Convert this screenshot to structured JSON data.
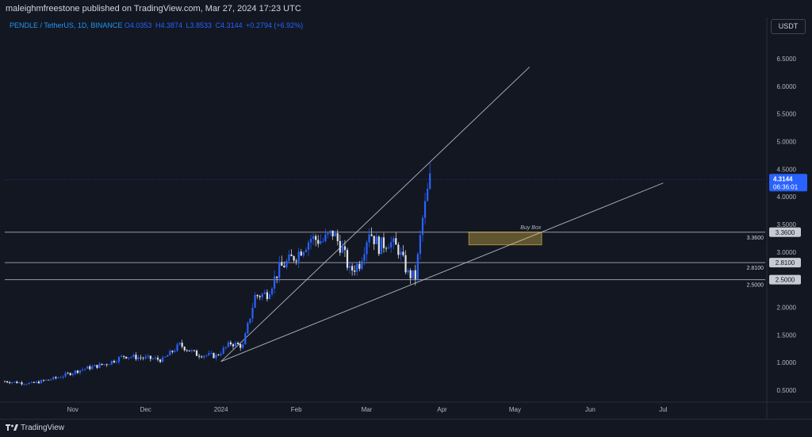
{
  "header": {
    "published_by": "maleighmfreestone published on TradingView.com, Mar 27, 2024 17:23 UTC"
  },
  "legend": {
    "symbol": "PENDLE / TetherUS, 1D, BINANCE",
    "open": "O4.0353",
    "high": "H4.3874",
    "low": "L3.8533",
    "close": "C4.3144",
    "change": "+0.2794 (+6.92%)"
  },
  "currency_button": "USDT",
  "footer": {
    "logo_text": "TradingView"
  },
  "colors": {
    "background": "#131722",
    "candle": "#2962ff",
    "candle_light": "#e0e3eb",
    "buy_box": "#f2c94c",
    "level_line": "#9598a1",
    "price_badge": "#2962ff"
  },
  "chart_data": {
    "type": "candlestick",
    "symbol": "PENDLE / TetherUS",
    "timeframe": "1D",
    "exchange": "BINANCE",
    "ylim": [
      0.35,
      7.05
    ],
    "y_ticks": [
      "6.5000",
      "6.0000",
      "5.5000",
      "5.0000",
      "4.5000",
      "4.0000",
      "3.5000",
      "3.0000",
      "2.5000",
      "2.0000",
      "1.5000",
      "1.0000",
      "0.5000"
    ],
    "x_ticks": [
      "Nov",
      "Dec",
      "2024",
      "Feb",
      "Mar",
      "Apr",
      "May",
      "Jun",
      "Jul"
    ],
    "x_tick_dates": [
      "2023-11-01",
      "2023-12-01",
      "2024-01-01",
      "2024-02-01",
      "2024-03-01",
      "2024-04-01",
      "2024-05-01",
      "2024-06-01",
      "2024-07-01"
    ],
    "xlim": [
      "2023-10-04",
      "2024-08-12"
    ],
    "current_price": "4.3144",
    "countdown": "06:36:01",
    "close_series": [
      {
        "date": "2023-10-04",
        "value": 0.66
      },
      {
        "date": "2023-10-15",
        "value": 0.62
      },
      {
        "date": "2023-10-25",
        "value": 0.72
      },
      {
        "date": "2023-11-05",
        "value": 0.88
      },
      {
        "date": "2023-11-15",
        "value": 0.98
      },
      {
        "date": "2023-11-22",
        "value": 1.12
      },
      {
        "date": "2023-12-01",
        "value": 1.08
      },
      {
        "date": "2023-12-08",
        "value": 1.05
      },
      {
        "date": "2023-12-15",
        "value": 1.32
      },
      {
        "date": "2023-12-22",
        "value": 1.15
      },
      {
        "date": "2023-12-30",
        "value": 1.12
      },
      {
        "date": "2024-01-05",
        "value": 1.35
      },
      {
        "date": "2024-01-10",
        "value": 1.3
      },
      {
        "date": "2024-01-15",
        "value": 2.2
      },
      {
        "date": "2024-01-20",
        "value": 2.25
      },
      {
        "date": "2024-01-25",
        "value": 2.7
      },
      {
        "date": "2024-02-01",
        "value": 2.95
      },
      {
        "date": "2024-02-07",
        "value": 3.25
      },
      {
        "date": "2024-02-12",
        "value": 3.2
      },
      {
        "date": "2024-02-16",
        "value": 3.35
      },
      {
        "date": "2024-02-20",
        "value": 3.05
      },
      {
        "date": "2024-02-23",
        "value": 2.65
      },
      {
        "date": "2024-02-27",
        "value": 2.8
      },
      {
        "date": "2024-03-02",
        "value": 3.4
      },
      {
        "date": "2024-03-06",
        "value": 3.1
      },
      {
        "date": "2024-03-10",
        "value": 3.2
      },
      {
        "date": "2024-03-14",
        "value": 3.05
      },
      {
        "date": "2024-03-18",
        "value": 2.6
      },
      {
        "date": "2024-03-21",
        "value": 2.55
      },
      {
        "date": "2024-03-24",
        "value": 3.6
      },
      {
        "date": "2024-03-27",
        "value": 4.3144
      }
    ],
    "horizontal_levels": [
      {
        "label": "3.3600",
        "value": 3.36
      },
      {
        "label": "2.8100",
        "value": 2.81
      },
      {
        "label": "2.5000",
        "value": 2.5
      }
    ],
    "trendlines": [
      {
        "from": {
          "date": "2024-01-01",
          "value": 1.02
        },
        "to": {
          "date": "2024-05-07",
          "value": 6.35
        }
      },
      {
        "from": {
          "date": "2024-01-01",
          "value": 1.02
        },
        "to": {
          "date": "2024-07-01",
          "value": 4.25
        }
      }
    ],
    "annotation": {
      "label": "Buy Box",
      "x_from": "2024-04-12",
      "x_to": "2024-05-12",
      "y_from": 3.13,
      "y_to": 3.36
    }
  }
}
